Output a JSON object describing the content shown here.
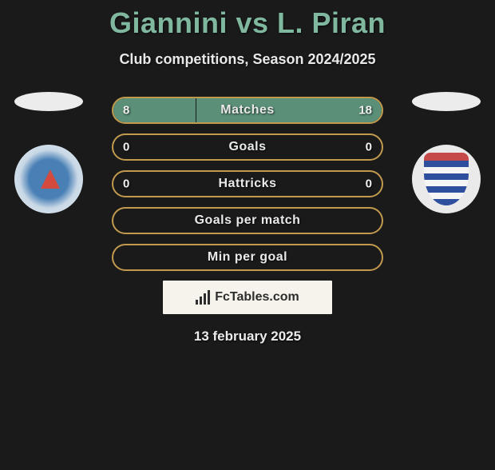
{
  "title": "Giannini vs L. Piran",
  "subtitle": "Club competitions, Season 2024/2025",
  "date": "13 february 2025",
  "brand": "FcTables.com",
  "colors": {
    "accent": "#7fb89f",
    "pill_border": "#c19a4e",
    "fill": "#5b8f77",
    "background": "#1a1a1a",
    "box_bg": "#f5f3eb"
  },
  "rows": [
    {
      "label": "Matches",
      "left": "8",
      "right": "18",
      "fill_left_pct": 30.8,
      "fill_right_pct": 69.2
    },
    {
      "label": "Goals",
      "left": "0",
      "right": "0",
      "fill_left_pct": 0,
      "fill_right_pct": 0
    },
    {
      "label": "Hattricks",
      "left": "0",
      "right": "0",
      "fill_left_pct": 0,
      "fill_right_pct": 0
    },
    {
      "label": "Goals per match",
      "left": "",
      "right": "",
      "fill_left_pct": 0,
      "fill_right_pct": 0
    },
    {
      "label": "Min per goal",
      "left": "",
      "right": "",
      "fill_left_pct": 0,
      "fill_right_pct": 0
    }
  ],
  "players": {
    "left": {
      "flag": "left-flag",
      "badge": "left-club-badge"
    },
    "right": {
      "flag": "right-flag",
      "badge": "right-club-badge"
    }
  }
}
